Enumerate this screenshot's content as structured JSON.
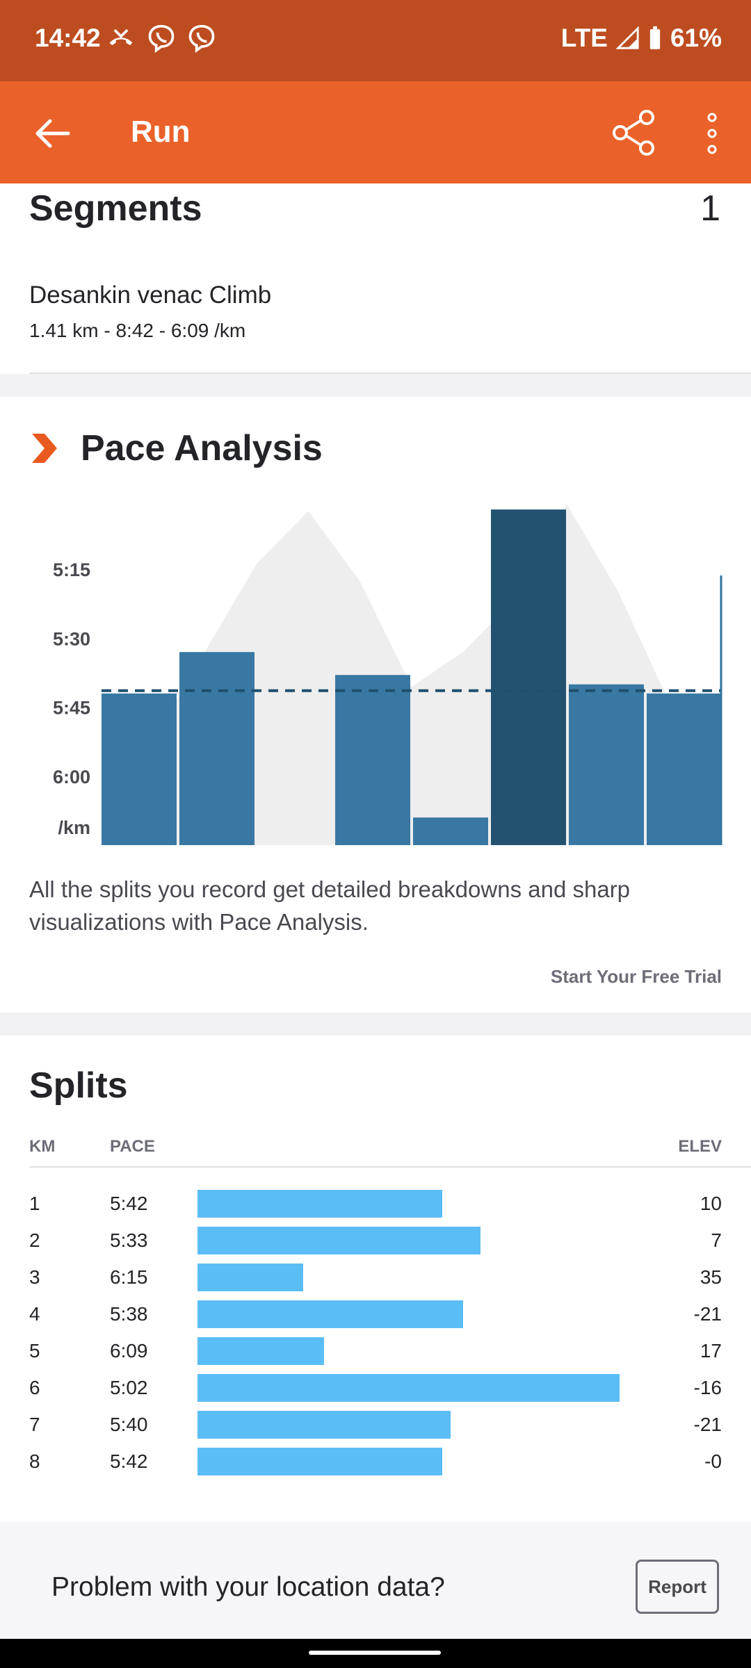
{
  "status_bar": {
    "time": "14:42",
    "network": "LTE",
    "battery": "61%"
  },
  "app_bar": {
    "title": "Run"
  },
  "segments": {
    "title": "Segments",
    "count": "1",
    "items": [
      {
        "name": "Desankin venac Climb",
        "detail": "1.41 km - 8:42 - 6:09 /km"
      }
    ]
  },
  "pace_analysis": {
    "title": "Pace Analysis",
    "description": "All the splits you record get detailed breakdowns and sharp visualizations with Pace Analysis.",
    "cta": "Start Your Free Trial"
  },
  "chart_data": {
    "type": "bar",
    "categories": [
      "1",
      "2",
      "3",
      "4",
      "5",
      "6",
      "7",
      "8"
    ],
    "values": [
      5.7,
      5.55,
      6.25,
      5.633,
      6.15,
      5.033,
      5.667,
      5.7
    ],
    "highlight_index": 5,
    "average": 5.69,
    "y_ticks": [
      "5:15",
      "5:30",
      "5:45",
      "6:00"
    ],
    "y_tick_values": [
      5.25,
      5.5,
      5.75,
      6.0
    ],
    "ylabel": "/km",
    "ylim": [
      6.25,
      5.0
    ],
    "elevation_profile": [
      0.15,
      0.3,
      0.55,
      0.8,
      0.95,
      0.75,
      0.45,
      0.55,
      0.7,
      0.97,
      0.72,
      0.4,
      0.35
    ]
  },
  "splits": {
    "title": "Splits",
    "headers": {
      "km": "KM",
      "pace": "PACE",
      "elev": "ELEV"
    },
    "rows": [
      {
        "km": "1",
        "pace": "5:42",
        "elev": "10",
        "fraction": 0.58
      },
      {
        "km": "2",
        "pace": "5:33",
        "elev": "7",
        "fraction": 0.67
      },
      {
        "km": "3",
        "pace": "6:15",
        "elev": "35",
        "fraction": 0.25
      },
      {
        "km": "4",
        "pace": "5:38",
        "elev": "-21",
        "fraction": 0.63
      },
      {
        "km": "5",
        "pace": "6:09",
        "elev": "17",
        "fraction": 0.3
      },
      {
        "km": "6",
        "pace": "5:02",
        "elev": "-16",
        "fraction": 1.0
      },
      {
        "km": "7",
        "pace": "5:40",
        "elev": "-21",
        "fraction": 0.6
      },
      {
        "km": "8",
        "pace": "5:42",
        "elev": "-0",
        "fraction": 0.58
      }
    ]
  },
  "footer": {
    "text": "Problem with your location data?",
    "report_label": "Report"
  },
  "colors": {
    "brand": "#ea6229",
    "status": "#bd4d20",
    "bar": "#3274a0",
    "bar_highlight": "#1f4f6e",
    "split_bar": "#5bbdf6"
  }
}
